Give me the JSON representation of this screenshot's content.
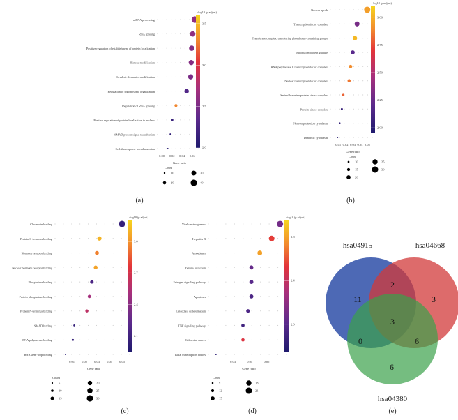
{
  "figure": {
    "panel_labels": [
      "(a)",
      "(b)",
      "(c)",
      "(d)",
      "(e)"
    ]
  },
  "colors": {
    "cb_stops": [
      "#1f1a6e",
      "#5b2a8c",
      "#a8307c",
      "#e3343a",
      "#f28b2e",
      "#f6d41e"
    ],
    "venn": [
      "#2e4fa8",
      "#d23a3a",
      "#3aa14a"
    ]
  },
  "chart_data": [
    {
      "panel": "(a)",
      "type": "scatter",
      "xlabel": "Gene ratio",
      "xticks": [
        "0.00",
        "0.02",
        "0.04",
        "0.06"
      ],
      "xlim": [
        0.0,
        0.07
      ],
      "colorbar_title": "-log10 (p.adjust)",
      "colorbar_ticks": [
        "3.5",
        "3.0",
        "2.5",
        "2.0"
      ],
      "clim": [
        2.0,
        3.6
      ],
      "size_legend_title": "Count",
      "size_legend": [
        "10",
        "20",
        "30",
        "40"
      ],
      "size_range": [
        8,
        42
      ],
      "categories": [
        "mRNA processing",
        "RNA splicing",
        "Positive regulation of establishment of protein localization",
        "Histone modification",
        "Covalent chromatin modification",
        "Regulation of chromosome organization",
        "Regulation of RNA splicing",
        "Positive regulation of protein localization to nucleus",
        "SMAD protein signal transduction",
        "Cellular response to cadmium ion"
      ],
      "x": [
        0.065,
        0.061,
        0.059,
        0.058,
        0.057,
        0.049,
        0.028,
        0.021,
        0.017,
        0.012
      ],
      "size": [
        40,
        34,
        33,
        32,
        32,
        28,
        18,
        12,
        10,
        8
      ],
      "color": [
        2.6,
        2.6,
        2.55,
        2.55,
        2.5,
        2.3,
        3.3,
        2.15,
        2.1,
        2.05
      ]
    },
    {
      "panel": "(b)",
      "type": "scatter",
      "xlabel": "Gene ratio",
      "xticks": [
        "0.01",
        "0.02",
        "0.03",
        "0.04",
        "0.05"
      ],
      "xlim": [
        0.005,
        0.055
      ],
      "colorbar_title": "-log10 (p.adjust)",
      "colorbar_ticks": [
        "3.00",
        "2.75",
        "2.50",
        "2.25",
        "2.00"
      ],
      "clim": [
        1.95,
        3.1
      ],
      "size_legend_title": "Count",
      "size_legend": [
        "10",
        "15",
        "20",
        "25",
        "30"
      ],
      "size_range": [
        8,
        32
      ],
      "categories": [
        "Nuclear speck",
        "Transcription factor complex",
        "Transferase complex, transferring phosphorus-containing groups",
        "Ribonucleoprotein granule",
        "RNA polymerase II transcription factor complex",
        "Nuclear transcription factor complex",
        "Serine/threonine protein kinase complex",
        "Protein kinase complex",
        "Neuron projection cytoplasm",
        "Dendritic cytoplasm"
      ],
      "x": [
        0.05,
        0.036,
        0.033,
        0.03,
        0.027,
        0.025,
        0.017,
        0.015,
        0.012,
        0.009
      ],
      "size": [
        30,
        24,
        22,
        20,
        17,
        16,
        12,
        11,
        10,
        8
      ],
      "color": [
        2.95,
        2.3,
        3.02,
        2.2,
        2.9,
        2.85,
        2.8,
        2.05,
        2.02,
        2.0
      ]
    },
    {
      "panel": "(c)",
      "type": "scatter",
      "xlabel": "Gene ratio",
      "xticks": [
        "0.01",
        "0.02",
        "0.03",
        "0.04",
        "0.05"
      ],
      "xlim": [
        0.0,
        0.055
      ],
      "colorbar_title": "-log10 (p.adjust)",
      "colorbar_ticks": [
        "3.0",
        "2.7",
        "2.4",
        "2.1"
      ],
      "clim": [
        1.95,
        3.2
      ],
      "size_legend_title": "Count",
      "size_legend": [
        "5",
        "10",
        "15",
        "20",
        "25",
        "30"
      ],
      "size_range": [
        4,
        32
      ],
      "categories": [
        "Chromatin binding",
        "Protein C-terminus binding",
        "Hormone receptor binding",
        "Nuclear hormone receptor binding",
        "Phosphatase binding",
        "Protein phosphatase binding",
        "Protein N-terminus binding",
        "SMAD binding",
        "RNA polymerase binding",
        "RNA stem-loop binding"
      ],
      "x": [
        0.05,
        0.032,
        0.03,
        0.029,
        0.026,
        0.024,
        0.022,
        0.012,
        0.011,
        0.005
      ],
      "size": [
        30,
        19,
        18,
        17,
        15,
        14,
        13,
        7,
        6,
        4
      ],
      "color": [
        2.05,
        3.1,
        2.95,
        3.05,
        2.15,
        2.5,
        2.6,
        2.05,
        2.05,
        2.0
      ]
    },
    {
      "panel": "(d)",
      "type": "scatter",
      "xlabel": "Gene ratio",
      "xticks": [
        "0.03",
        "0.04",
        "0.05"
      ],
      "xlim": [
        0.018,
        0.061
      ],
      "colorbar_title": "-log10 (p.adjust)",
      "colorbar_ticks": [
        "2.8",
        "2.4",
        "2.0"
      ],
      "clim": [
        1.75,
        2.95
      ],
      "size_legend_title": "Count",
      "size_legend": [
        "9",
        "12",
        "15",
        "18",
        "21"
      ],
      "size_range": [
        8,
        22
      ],
      "categories": [
        "Viral carcinogenesis",
        "Hepatitis B",
        "Amoebiasis",
        "Yersinia infection",
        "Estrogen signaling pathway",
        "Apoptosis",
        "Osteoclast differentiation",
        "TNF signaling pathway",
        "Colorectal cancer",
        "Basal transcription factors"
      ],
      "x": [
        0.058,
        0.053,
        0.046,
        0.041,
        0.041,
        0.041,
        0.039,
        0.036,
        0.036,
        0.02
      ],
      "size": [
        21,
        19,
        17,
        15,
        15,
        15,
        14,
        13,
        13,
        8
      ],
      "color": [
        2.1,
        2.55,
        2.8,
        2.05,
        2.0,
        1.95,
        1.95,
        1.9,
        2.5,
        1.8
      ]
    }
  ],
  "venn": {
    "labels": [
      "hsa04915",
      "hsa04668",
      "hsa04380"
    ],
    "regions": {
      "a_only": "11",
      "b_only": "3",
      "c_only": "6",
      "ab": "2",
      "ac": "0",
      "bc": "6",
      "abc": "3"
    }
  }
}
